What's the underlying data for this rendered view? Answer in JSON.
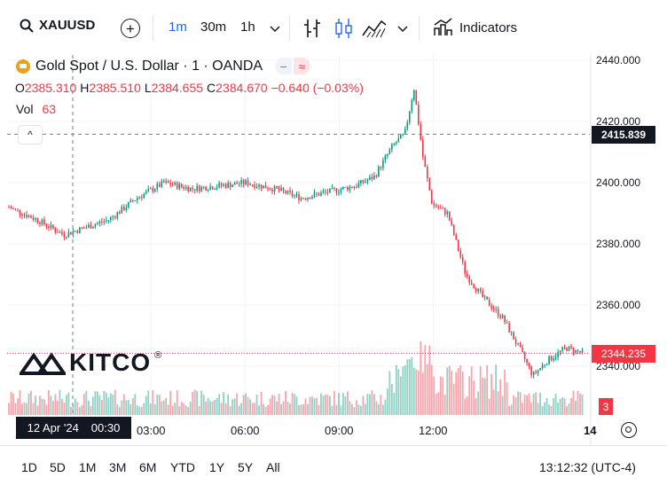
{
  "toolbar": {
    "symbol": "XAUUSD",
    "intervals": [
      "1m",
      "30m",
      "1h"
    ],
    "active_interval": "1m",
    "indicators_label": "Indicators"
  },
  "legend": {
    "title": "Gold Spot / U.S. Dollar · 1 · OANDA",
    "open_label": "O",
    "open": "2385.310",
    "high_label": "H",
    "high": "2385.510",
    "low_label": "L",
    "low": "2384.655",
    "close_label": "C",
    "close": "2384.670",
    "change": "−0.640 (−0.03%)",
    "vol_label": "Vol",
    "vol": "63"
  },
  "watermark": {
    "text": "KITCO",
    "mark": "®"
  },
  "price_scale": {
    "labels": [
      "2440.000",
      "2420.000",
      "2400.000",
      "2380.000",
      "2360.000",
      "2340.000"
    ],
    "crosshair_price": "2415.839",
    "last_price": "2344.235",
    "volume_last": "3"
  },
  "time_scale": {
    "labels": [
      "03:00",
      "06:00",
      "09:00",
      "12:00",
      "14"
    ],
    "crosshair_date": "12 Apr '24",
    "crosshair_time": "00:30"
  },
  "bottom": {
    "ranges": [
      "1D",
      "5D",
      "1M",
      "3M",
      "6M",
      "YTD",
      "1Y",
      "5Y",
      "All"
    ],
    "clock": "13:12:32 (UTC-4)"
  },
  "colors": {
    "up": "#089981",
    "down": "#f23645",
    "accent": "#2962ff",
    "gold": "#e8a317"
  },
  "chart_data": {
    "type": "candlestick",
    "symbol": "XAUUSD",
    "interval": "1m",
    "ylim": [
      2333,
      2442
    ],
    "y_ticks": [
      2440,
      2420,
      2400,
      2380,
      2360,
      2340
    ],
    "x_ticks": [
      "03:00",
      "06:00",
      "09:00",
      "12:00",
      "14"
    ],
    "price_path": [
      {
        "t": "00:00",
        "price": 2392
      },
      {
        "t": "00:45",
        "price": 2388
      },
      {
        "t": "01:30",
        "price": 2383
      },
      {
        "t": "02:00",
        "price": 2385
      },
      {
        "t": "02:45",
        "price": 2388
      },
      {
        "t": "03:30",
        "price": 2395
      },
      {
        "t": "04:15",
        "price": 2400
      },
      {
        "t": "05:00",
        "price": 2398
      },
      {
        "t": "05:45",
        "price": 2399
      },
      {
        "t": "06:30",
        "price": 2400
      },
      {
        "t": "07:15",
        "price": 2398
      },
      {
        "t": "08:00",
        "price": 2395
      },
      {
        "t": "08:45",
        "price": 2397
      },
      {
        "t": "09:30",
        "price": 2399
      },
      {
        "t": "10:00",
        "price": 2402
      },
      {
        "t": "10:30",
        "price": 2412
      },
      {
        "t": "10:50",
        "price": 2416
      },
      {
        "t": "11:05",
        "price": 2431
      },
      {
        "t": "11:20",
        "price": 2408
      },
      {
        "t": "11:35",
        "price": 2393
      },
      {
        "t": "12:00",
        "price": 2390
      },
      {
        "t": "12:30",
        "price": 2370
      },
      {
        "t": "13:00",
        "price": 2362
      },
      {
        "t": "13:30",
        "price": 2356
      },
      {
        "t": "14:00",
        "price": 2345
      },
      {
        "t": "14:20",
        "price": 2337
      },
      {
        "t": "14:45",
        "price": 2342
      },
      {
        "t": "15:15",
        "price": 2346
      },
      {
        "t": "15:45",
        "price": 2344
      }
    ],
    "crosshair": {
      "price": 2415.839,
      "time": "00:30"
    },
    "last_price": 2344.235
  }
}
